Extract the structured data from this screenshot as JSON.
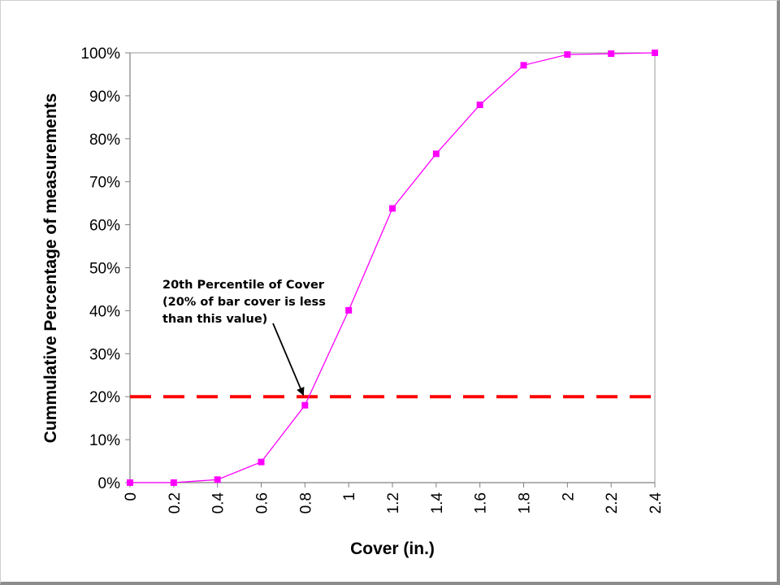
{
  "chart_data": {
    "type": "line",
    "title": "",
    "xlabel": "Cover (in.)",
    "ylabel": "Cummulative Percentage of measurements",
    "x": [
      0,
      0.2,
      0.4,
      0.6,
      0.8,
      1.0,
      1.2,
      1.4,
      1.6,
      1.8,
      2.0,
      2.2,
      2.4
    ],
    "x_tick_labels": [
      "0",
      "0.2",
      "0.4",
      "0.6",
      "0.8",
      "1",
      "1.2",
      "1.4",
      "1.6",
      "1.8",
      "2",
      "2.2",
      "2.4"
    ],
    "y_tick_labels": [
      "0%",
      "10%",
      "20%",
      "30%",
      "40%",
      "50%",
      "60%",
      "70%",
      "80%",
      "90%",
      "100%"
    ],
    "xlim": [
      0,
      2.4
    ],
    "ylim": [
      0,
      100
    ],
    "y_unit": "%",
    "grid": false,
    "legend": "none",
    "series": [
      {
        "color": "#ff00ff",
        "marker": "square",
        "values": [
          0,
          0,
          0.7,
          4.8,
          18.0,
          40.1,
          63.8,
          76.5,
          87.9,
          97.1,
          99.6,
          99.8,
          100
        ]
      }
    ],
    "reference_lines": [
      {
        "orientation": "horizontal",
        "y": 20,
        "color": "#ff0000",
        "style": "dashed"
      }
    ],
    "annotations": [
      {
        "lines": [
          "20th Percentile of Cover",
          "(20% of bar cover is less",
          "than this value)"
        ],
        "arrow_to": {
          "x": 0.8,
          "y": 20
        }
      }
    ]
  }
}
